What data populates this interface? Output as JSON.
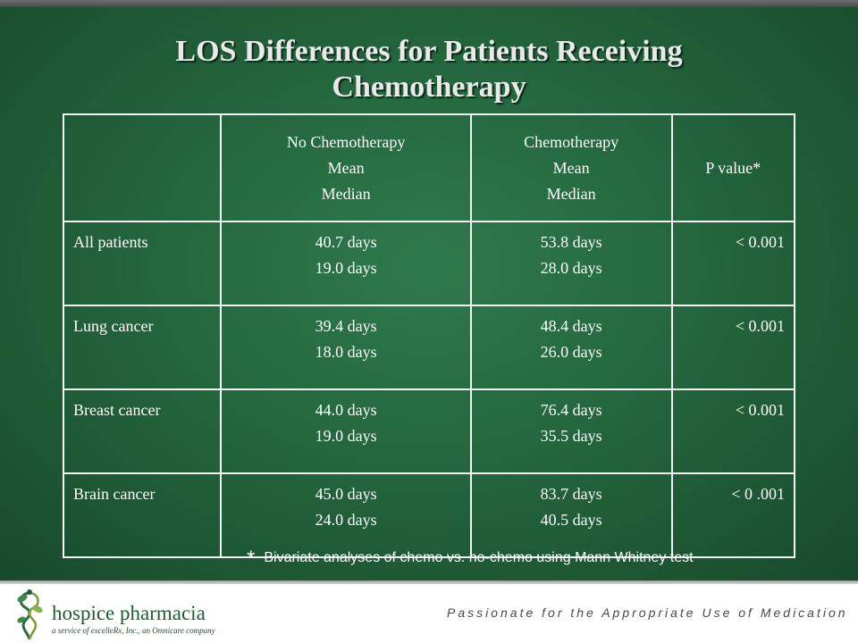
{
  "title": {
    "line1": "LOS Differences for Patients Receiving",
    "line2": "Chemotherapy"
  },
  "table": {
    "headers": {
      "no_chemo": [
        "No Chemotherapy",
        "Mean",
        "Median"
      ],
      "chemo": [
        "Chemotherapy",
        "Mean",
        "Median"
      ],
      "p_value": "P value*"
    },
    "rows": [
      {
        "label": "All patients",
        "no_chemo": [
          "40.7 days",
          "19.0 days"
        ],
        "chemo": [
          "53.8 days",
          "28.0 days"
        ],
        "p": "< 0.001"
      },
      {
        "label": "Lung cancer",
        "no_chemo": [
          "39.4 days",
          "18.0  days"
        ],
        "chemo": [
          "48.4 days",
          "26.0  days"
        ],
        "p": "< 0.001"
      },
      {
        "label": "Breast cancer",
        "no_chemo": [
          "44.0  days",
          "19.0 days"
        ],
        "chemo": [
          "76.4 days",
          "35.5  days"
        ],
        "p": "< 0.001"
      },
      {
        "label": "Brain cancer",
        "no_chemo": [
          "45.0 days",
          "24.0 days"
        ],
        "chemo": [
          "83.7 days",
          "40.5 days"
        ],
        "p": "< 0 .001"
      }
    ]
  },
  "footnote": {
    "marker": "*",
    "text": "Bivariate analyses of chemo vs. no-chemo using Mann Whitney test"
  },
  "footer": {
    "logo_name": "hospice pharmacia",
    "logo_sub": "a service of excelleRx, Inc., an Omnicare company",
    "logo_icon": "caduceus-leaf-icon",
    "tagline": "Passionate for the Appropriate Use of Medication"
  },
  "colors": {
    "slide_bg": "#24663d",
    "title_text": "#e9e9e9",
    "table_text": "#ffffff",
    "logo_green": "#1f5c34"
  }
}
